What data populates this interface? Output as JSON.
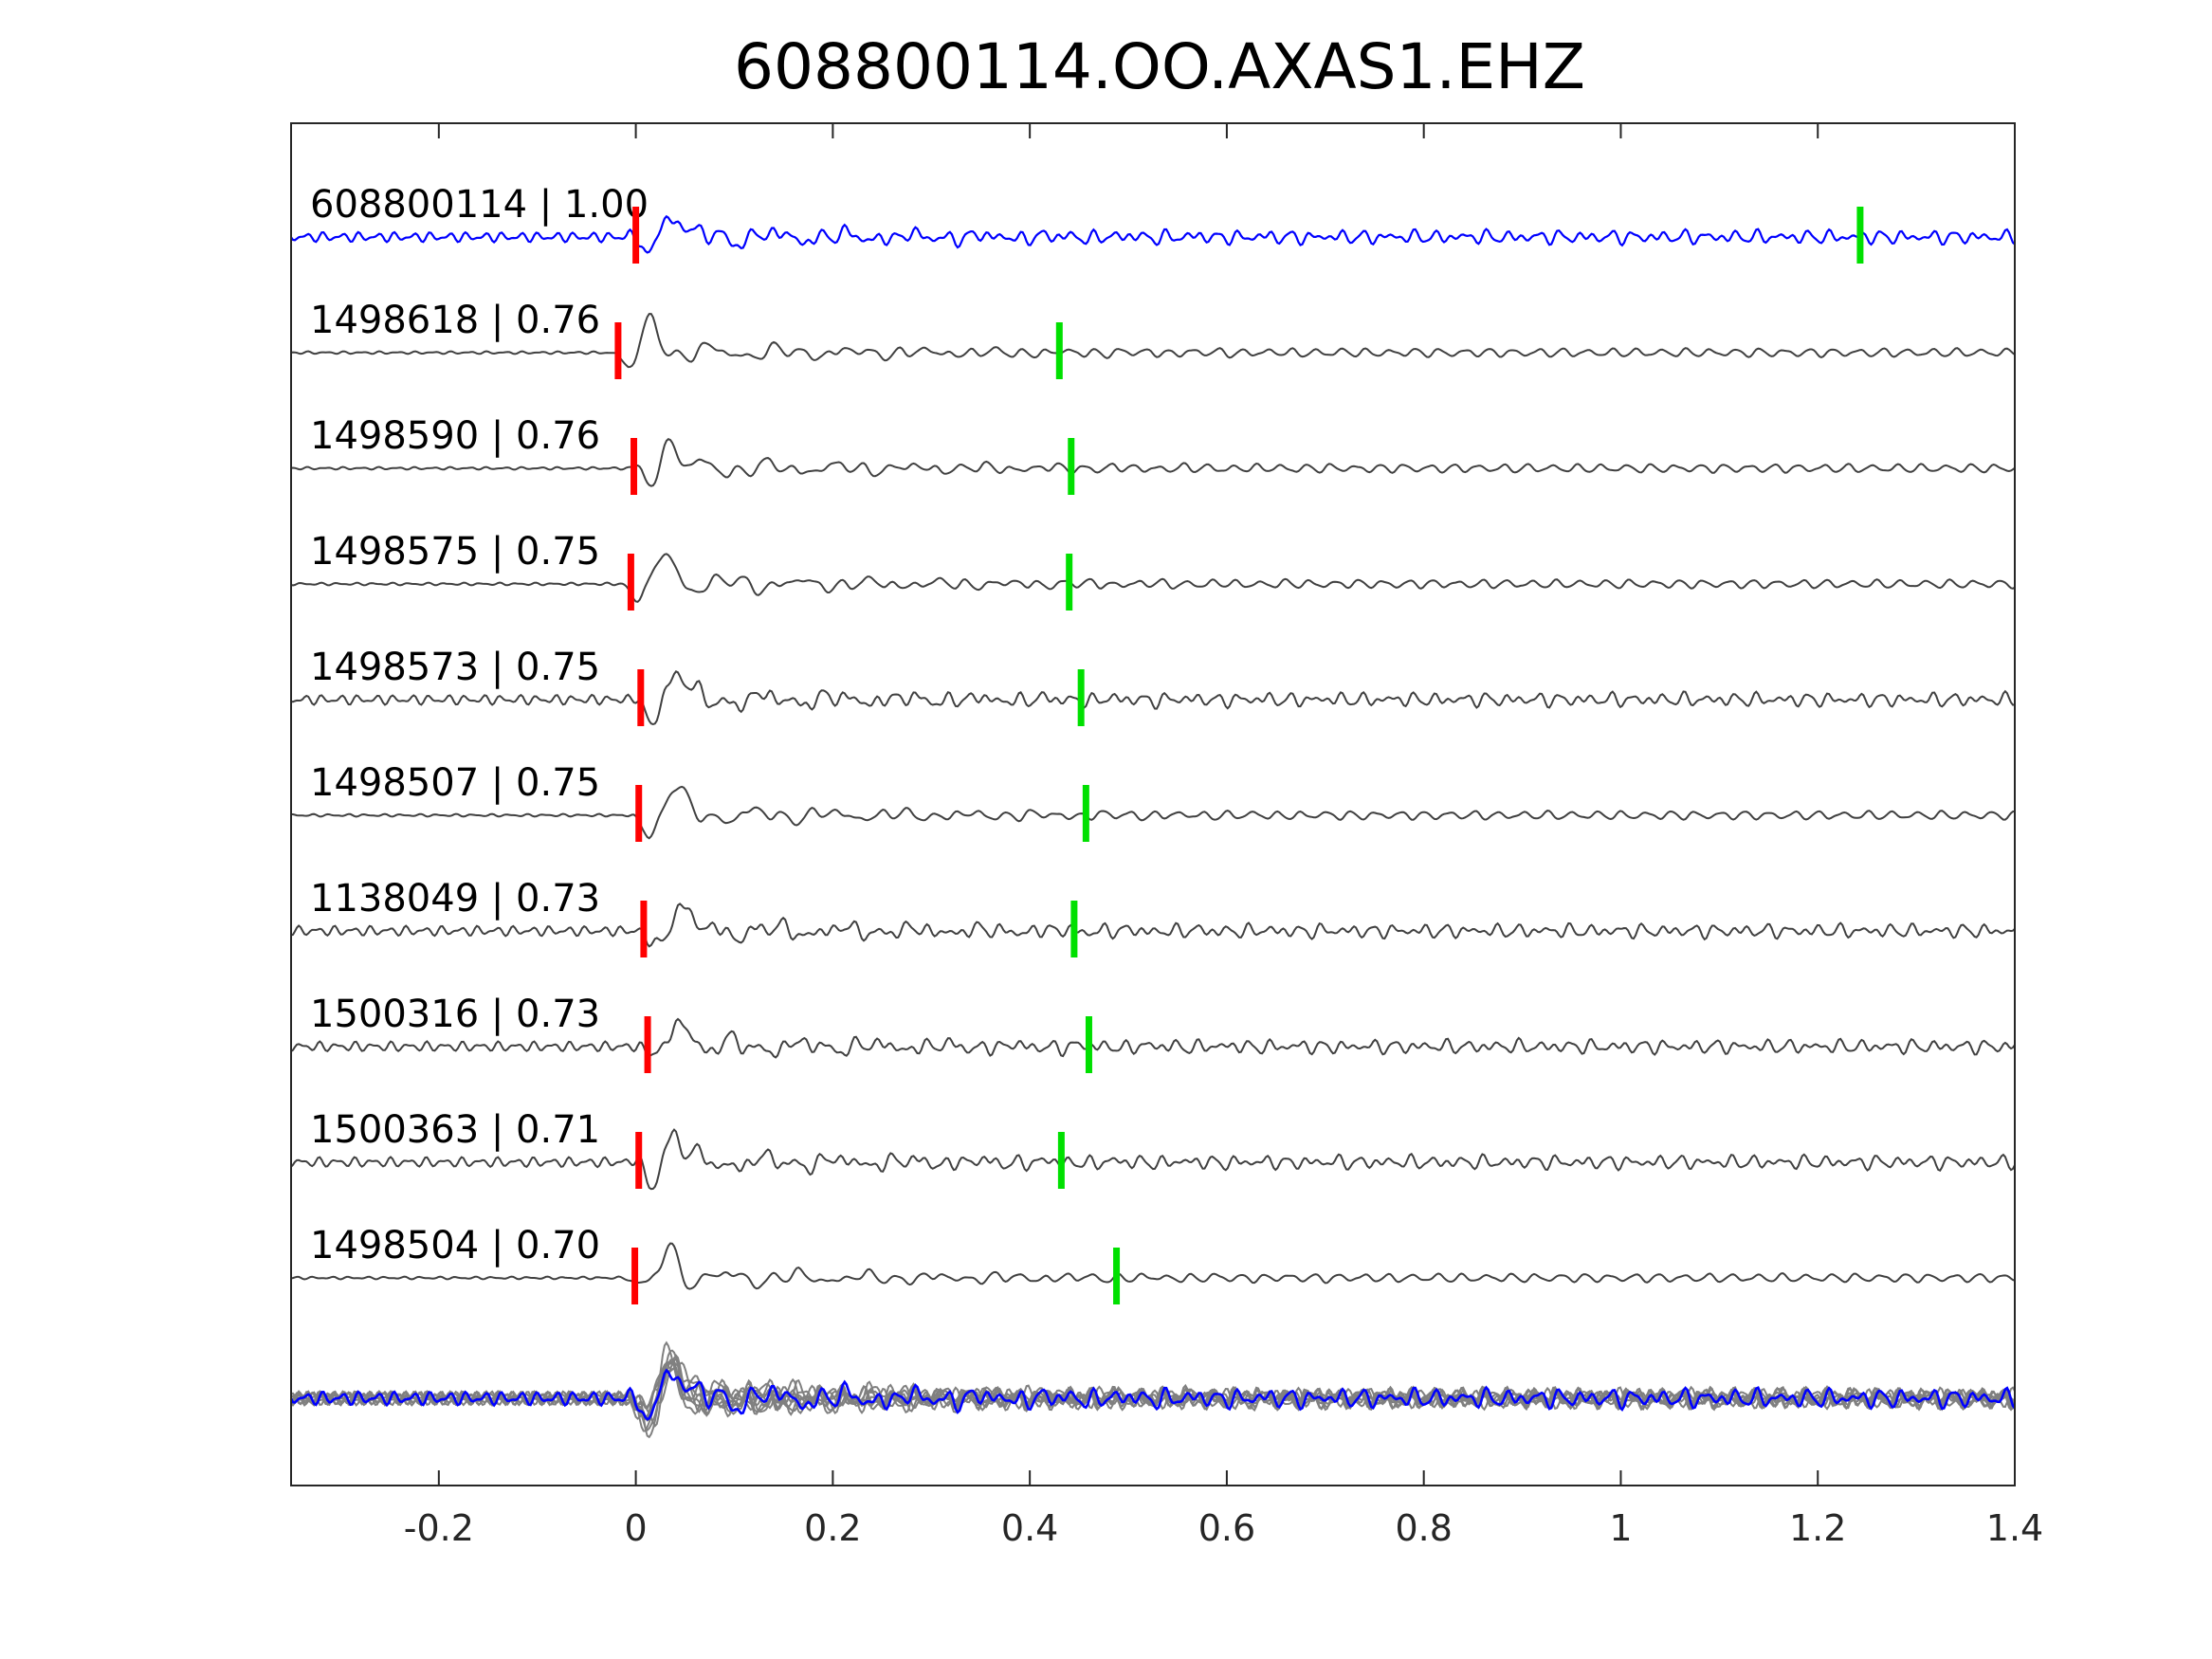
{
  "title": "608800114.OO.AXAS1.EHZ",
  "chart_data": {
    "type": "line",
    "title": "608800114.OO.AXAS1.EHZ",
    "xlabel": "",
    "ylabel": "",
    "xlim": [
      -0.35,
      1.4
    ],
    "xticks": [
      -0.2,
      0,
      0.2,
      0.4,
      0.6,
      0.8,
      1,
      1.2,
      1.4
    ],
    "xtick_labels": [
      "-0.2",
      "0",
      "0.2",
      "0.4",
      "0.6",
      "0.8",
      "1",
      "1.2",
      "1.4"
    ],
    "grid": false,
    "series": [
      {
        "name": "608800114 | 1.00",
        "id": "608800114",
        "cc": 1.0,
        "p_pick": 0.0,
        "s_pick": 1.243,
        "color": "#0000ff",
        "style": "noisy",
        "seed": 11
      },
      {
        "name": "1498618 | 0.76",
        "id": "1498618",
        "cc": 0.76,
        "p_pick": -0.018,
        "s_pick": 0.43,
        "color": "#404040",
        "style": "quiet",
        "seed": 23
      },
      {
        "name": "1498590 | 0.76",
        "id": "1498590",
        "cc": 0.76,
        "p_pick": -0.002,
        "s_pick": 0.442,
        "color": "#404040",
        "style": "quiet",
        "seed": 37
      },
      {
        "name": "1498575 | 0.75",
        "id": "1498575",
        "cc": 0.75,
        "p_pick": -0.005,
        "s_pick": 0.44,
        "color": "#404040",
        "style": "quiet",
        "seed": 41
      },
      {
        "name": "1498573 | 0.75",
        "id": "1498573",
        "cc": 0.75,
        "p_pick": 0.005,
        "s_pick": 0.452,
        "color": "#404040",
        "style": "noisy",
        "seed": 53
      },
      {
        "name": "1498507 | 0.75",
        "id": "1498507",
        "cc": 0.75,
        "p_pick": 0.003,
        "s_pick": 0.457,
        "color": "#404040",
        "style": "quiet",
        "seed": 61
      },
      {
        "name": "1138049 | 0.73",
        "id": "1138049",
        "cc": 0.73,
        "p_pick": 0.008,
        "s_pick": 0.445,
        "color": "#404040",
        "style": "noisy",
        "seed": 71
      },
      {
        "name": "1500316 | 0.73",
        "id": "1500316",
        "cc": 0.73,
        "p_pick": 0.012,
        "s_pick": 0.46,
        "color": "#404040",
        "style": "noisy",
        "seed": 83
      },
      {
        "name": "1500363 | 0.71",
        "id": "1500363",
        "cc": 0.71,
        "p_pick": 0.003,
        "s_pick": 0.432,
        "color": "#404040",
        "style": "noisy",
        "seed": 97
      },
      {
        "name": "1498504 | 0.70",
        "id": "1498504",
        "cc": 0.7,
        "p_pick": -0.001,
        "s_pick": 0.488,
        "color": "#404040",
        "style": "quiet",
        "seed": 101
      }
    ],
    "stack": {
      "template_color": "#0000ff",
      "trace_color": "#808080"
    },
    "p_pick_color": "#ff0000",
    "s_pick_color": "#00e000"
  }
}
